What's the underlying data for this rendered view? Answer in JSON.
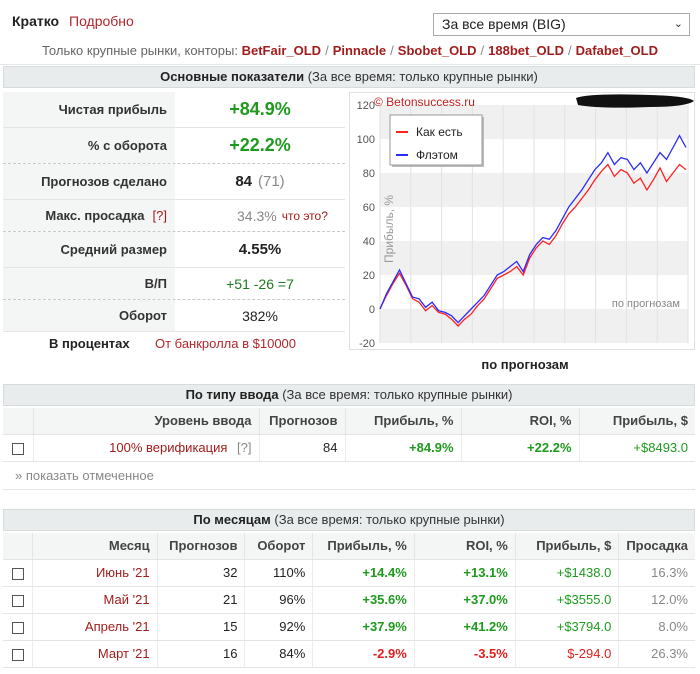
{
  "tabs": {
    "short": "Кратко",
    "detailed": "Подробно"
  },
  "period_select": {
    "value": "За все время (BIG)",
    "arrow": "⌄"
  },
  "bookmakers": {
    "prefix": "Только крупные рынки, конторы:",
    "items": [
      "BetFair_OLD",
      "Pinnacle",
      "Sbobet_OLD",
      "188bet_OLD",
      "Dafabet_OLD"
    ]
  },
  "main_section": {
    "title": "Основные показатели",
    "subtitle": "(За все время: только крупные рынки)"
  },
  "stats": {
    "net_profit": {
      "label": "Чистая прибыль",
      "value": "+84.9%"
    },
    "turnover": {
      "label": "% с оборота",
      "value": "+22.2%"
    },
    "forecasts": {
      "label": "Прогнозов сделано",
      "value": "84",
      "secondary": "(71)"
    },
    "drawdown": {
      "label": "Макс. просадка",
      "hint": "[?]",
      "value": "34.3%",
      "what": "что это?"
    },
    "avg_size": {
      "label": "Средний размер",
      "value": "4.55%"
    },
    "wl": {
      "label": "В/П",
      "value": "+51 -26 =7"
    },
    "turnover_total": {
      "label": "Оборот",
      "value": "382%"
    }
  },
  "percent_line": {
    "label": "В процентах",
    "value": "От банкролла в $10000"
  },
  "chart_caption": "по прогнозам",
  "chart_data": {
    "type": "line",
    "watermark": "© Betonsuccess.ru",
    "ylabel": "Прибыль, %",
    "inner_label": "по прогнозам",
    "ylim": [
      -20,
      120
    ],
    "yticks": [
      -20,
      0,
      20,
      40,
      60,
      80,
      100,
      120
    ],
    "xlim": [
      0,
      84
    ],
    "legend_placement": "top-left",
    "series": [
      {
        "name": "Как есть",
        "color": "#ff2020",
        "values": [
          0,
          8,
          15,
          21,
          14,
          6,
          4,
          -1,
          2,
          -2,
          -3,
          -6,
          -10,
          -6,
          -3,
          2,
          6,
          12,
          18,
          20,
          22,
          25,
          20,
          30,
          36,
          40,
          38,
          43,
          50,
          56,
          60,
          65,
          70,
          76,
          81,
          85,
          78,
          82,
          80,
          74,
          77,
          70,
          76,
          83,
          75,
          80,
          85,
          82
        ]
      },
      {
        "name": "Флэтом",
        "color": "#2a2aff",
        "values": [
          0,
          9,
          16,
          23,
          15,
          7,
          6,
          1,
          4,
          -1,
          -2,
          -4,
          -8,
          -4,
          0,
          4,
          8,
          14,
          20,
          22,
          25,
          28,
          22,
          32,
          38,
          42,
          41,
          46,
          53,
          60,
          65,
          70,
          76,
          82,
          86,
          92,
          85,
          89,
          88,
          82,
          86,
          80,
          86,
          92,
          88,
          95,
          102,
          95
        ]
      }
    ]
  },
  "entry_section": {
    "title": "По типу ввода",
    "subtitle": "(За все время: только крупные рынки)"
  },
  "entry_table": {
    "headers": [
      "Уровень ввода",
      "Прогнозов",
      "Прибыль, %",
      "ROI, %",
      "Прибыль, $"
    ],
    "row": {
      "level": "100% верификация",
      "hint": "[?]",
      "count": "84",
      "profit_pct": "+84.9%",
      "roi": "+22.2%",
      "profit_usd": "+$8493.0"
    }
  },
  "show_marked": "» показать отмеченное",
  "months_section": {
    "title": "По месяцам",
    "subtitle": "(За все время: только крупные рынки)"
  },
  "months_table": {
    "headers": [
      "Месяц",
      "Прогнозов",
      "Оборот",
      "Прибыль, %",
      "ROI, %",
      "Прибыль, $",
      "Просадка"
    ],
    "rows": [
      {
        "month": "Июнь '21",
        "count": "32",
        "turnover": "110%",
        "profit_pct": "+14.4%",
        "roi": "+13.1%",
        "profit_usd": "+$1438.0",
        "drawdown": "16.3%",
        "positive": true
      },
      {
        "month": "Май '21",
        "count": "21",
        "turnover": "96%",
        "profit_pct": "+35.6%",
        "roi": "+37.0%",
        "profit_usd": "+$3555.0",
        "drawdown": "12.0%",
        "positive": true
      },
      {
        "month": "Апрель '21",
        "count": "15",
        "turnover": "92%",
        "profit_pct": "+37.9%",
        "roi": "+41.2%",
        "profit_usd": "+$3794.0",
        "drawdown": "8.0%",
        "positive": true
      },
      {
        "month": "Март '21",
        "count": "16",
        "turnover": "84%",
        "profit_pct": "-2.9%",
        "roi": "-3.5%",
        "profit_usd": "$-294.0",
        "drawdown": "26.3%",
        "positive": false
      }
    ]
  },
  "colors": {
    "positive": "#1e9a1e",
    "negative": "#e02020",
    "link": "#a31c1c"
  }
}
